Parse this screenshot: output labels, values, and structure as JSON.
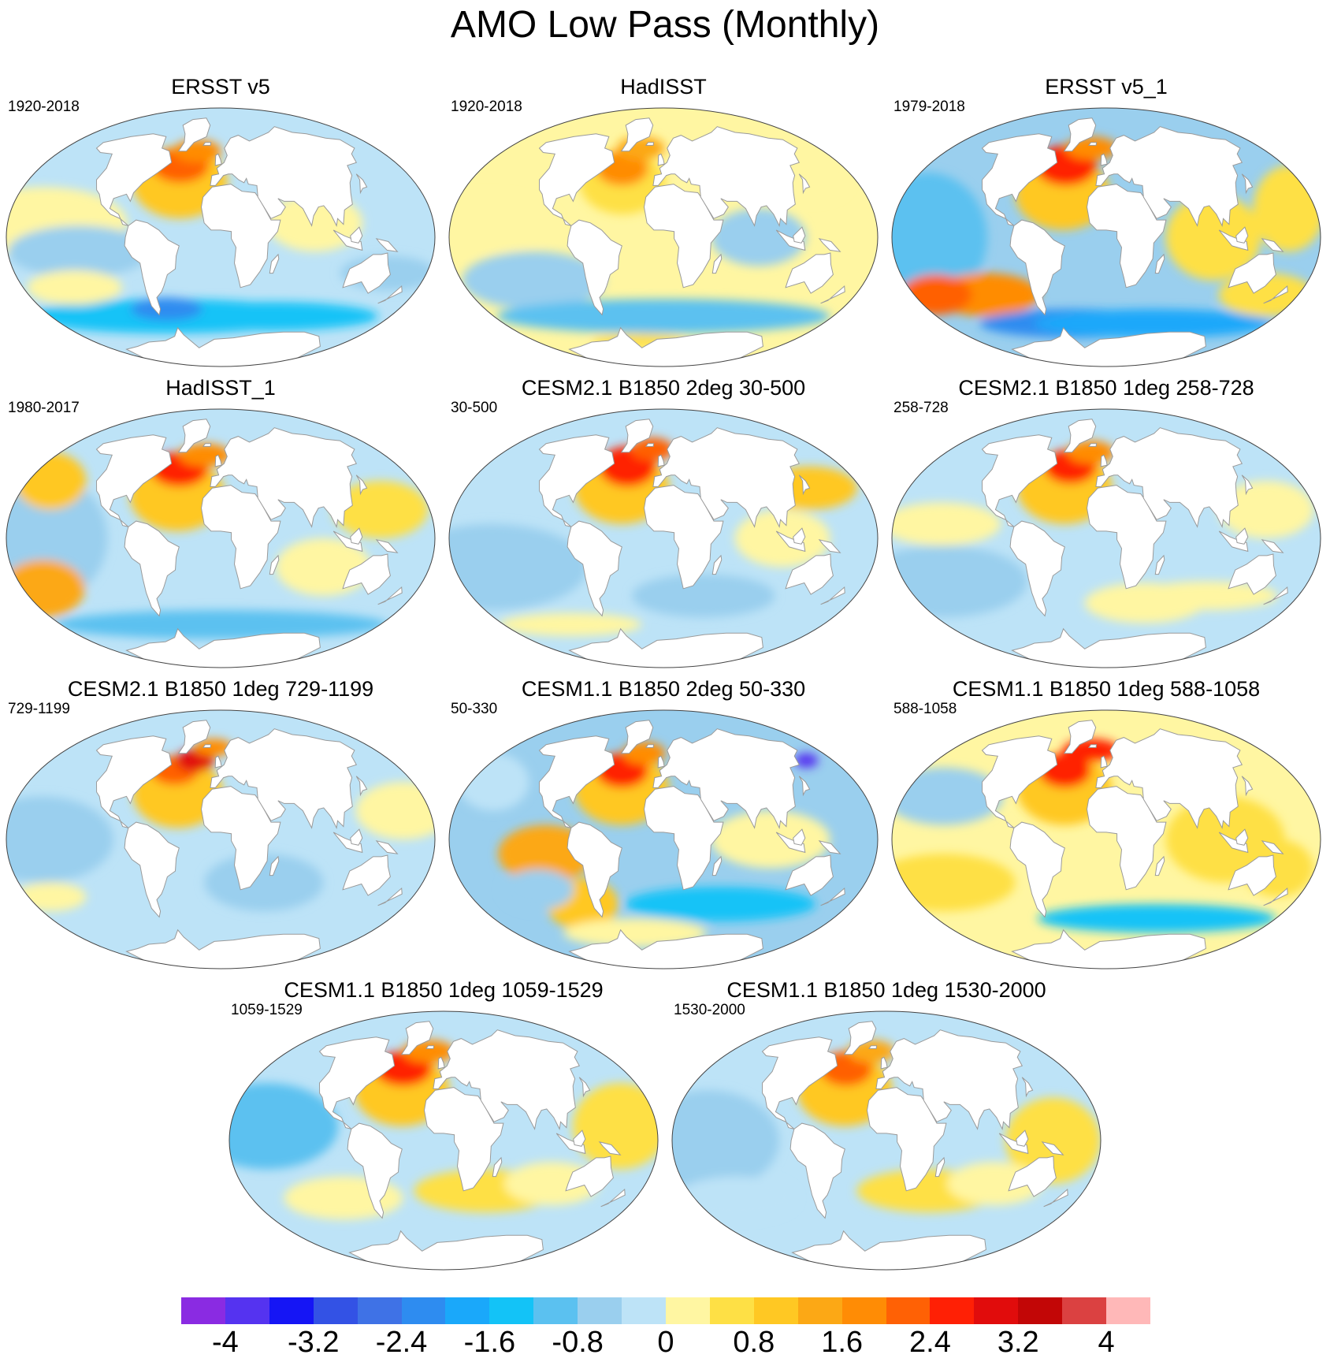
{
  "title": "AMO Low Pass (Monthly)",
  "colors": {
    "levels": [
      "#8A2BE2",
      "#5533F0",
      "#1515F5",
      "#3352E5",
      "#3F72E6",
      "#2E8CF0",
      "#1AA8FA",
      "#13C3F7",
      "#5BC1F0",
      "#9ACFEE",
      "#BDE3F7",
      "#FFF6A2",
      "#FEE045",
      "#FFC823",
      "#FCA815",
      "#FF8C05",
      "#FF6105",
      "#FF2005",
      "#E10C0C",
      "#C20606",
      "#DB4141",
      "#FFB8B8"
    ],
    "land": "#ffffff",
    "coast": "#9a9a9a",
    "outline": "#444444"
  },
  "colorbar": {
    "labels": [
      "-4",
      "-3.2",
      "-2.4",
      "-1.6",
      "-0.8",
      "0",
      "0.8",
      "1.6",
      "2.4",
      "3.2",
      "4"
    ]
  },
  "panels": [
    {
      "title": "ERSST v5",
      "years": "1920-2018"
    },
    {
      "title": "HadISST",
      "years": "1920-2018"
    },
    {
      "title": "ERSST v5_1",
      "years": "1979-2018"
    },
    {
      "title": "HadISST_1",
      "years": "1980-2017"
    },
    {
      "title": "CESM2.1 B1850 2deg 30-500",
      "years": "30-500"
    },
    {
      "title": "CESM2.1 B1850 1deg 258-728",
      "years": "258-728"
    },
    {
      "title": "CESM2.1 B1850 1deg 729-1199",
      "years": "729-1199"
    },
    {
      "title": "CESM1.1 B1850 2deg 50-330",
      "years": "50-330"
    },
    {
      "title": "CESM1.1 B1850 1deg 588-1058",
      "years": "588-1058"
    },
    {
      "title": "CESM1.1 B1850 1deg 1059-1529",
      "years": "1059-1529"
    },
    {
      "title": "CESM1.1 B1850 1deg 1530-2000",
      "years": "1530-2000"
    }
  ]
}
